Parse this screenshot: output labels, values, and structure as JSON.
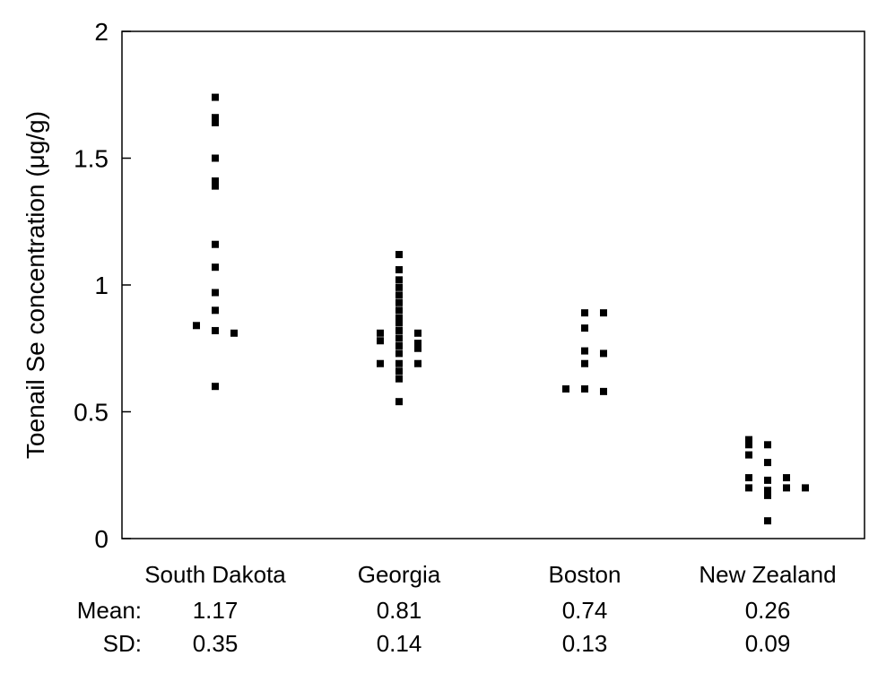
{
  "chart_data": {
    "type": "scatter",
    "ylabel": "Toenail Se concentration (μg/g)",
    "xlabel": "",
    "ylim": [
      0,
      2
    ],
    "yticks": [
      {
        "value": 0,
        "label": "0"
      },
      {
        "value": 0.5,
        "label": "0.5"
      },
      {
        "value": 1,
        "label": "1"
      },
      {
        "value": 1.5,
        "label": "1.5"
      },
      {
        "value": 2,
        "label": "2"
      }
    ],
    "grid": false,
    "legend": "none",
    "marker_color": "#000000",
    "categories": [
      "South Dakota",
      "Georgia",
      "Boston",
      "New Zealand"
    ],
    "groups": [
      {
        "name": "South Dakota",
        "points": [
          {
            "x": 0,
            "y": 1.74
          },
          {
            "x": 0,
            "y": 1.66
          },
          {
            "x": 0,
            "y": 1.64
          },
          {
            "x": 0,
            "y": 1.5
          },
          {
            "x": 0,
            "y": 1.41
          },
          {
            "x": 0,
            "y": 1.39
          },
          {
            "x": 0,
            "y": 1.16
          },
          {
            "x": 0,
            "y": 1.07
          },
          {
            "x": 0,
            "y": 0.97
          },
          {
            "x": 0,
            "y": 0.9
          },
          {
            "x": 0,
            "y": 0.82
          },
          {
            "x": 0,
            "y": 0.6
          },
          {
            "x": -1,
            "y": 0.84
          },
          {
            "x": 1,
            "y": 0.81
          }
        ]
      },
      {
        "name": "Georgia",
        "points": [
          {
            "x": 0,
            "y": 1.12
          },
          {
            "x": 0,
            "y": 1.06
          },
          {
            "x": 0,
            "y": 1.02
          },
          {
            "x": 0,
            "y": 0.99
          },
          {
            "x": 0,
            "y": 0.96
          },
          {
            "x": 0,
            "y": 0.93
          },
          {
            "x": 0,
            "y": 0.9
          },
          {
            "x": 0,
            "y": 0.87
          },
          {
            "x": 0,
            "y": 0.85
          },
          {
            "x": 0,
            "y": 0.82
          },
          {
            "x": 0,
            "y": 0.79
          },
          {
            "x": 0,
            "y": 0.76
          },
          {
            "x": 0,
            "y": 0.73
          },
          {
            "x": 0,
            "y": 0.69
          },
          {
            "x": 0,
            "y": 0.66
          },
          {
            "x": 0,
            "y": 0.63
          },
          {
            "x": 0,
            "y": 0.54
          },
          {
            "x": -1,
            "y": 0.81
          },
          {
            "x": -1,
            "y": 0.78
          },
          {
            "x": -1,
            "y": 0.69
          },
          {
            "x": 1,
            "y": 0.81
          },
          {
            "x": 1,
            "y": 0.77
          },
          {
            "x": 1,
            "y": 0.75
          },
          {
            "x": 1,
            "y": 0.69
          }
        ]
      },
      {
        "name": "Boston",
        "points": [
          {
            "x": 0,
            "y": 0.89
          },
          {
            "x": 0,
            "y": 0.83
          },
          {
            "x": 0,
            "y": 0.74
          },
          {
            "x": 0,
            "y": 0.69
          },
          {
            "x": 0,
            "y": 0.59
          },
          {
            "x": 1,
            "y": 0.89
          },
          {
            "x": 1,
            "y": 0.73
          },
          {
            "x": 1,
            "y": 0.58
          },
          {
            "x": -1,
            "y": 0.59
          }
        ]
      },
      {
        "name": "New Zealand",
        "points": [
          {
            "x": -1,
            "y": 0.39
          },
          {
            "x": -1,
            "y": 0.37
          },
          {
            "x": -1,
            "y": 0.33
          },
          {
            "x": -1,
            "y": 0.24
          },
          {
            "x": -1,
            "y": 0.2
          },
          {
            "x": 0,
            "y": 0.37
          },
          {
            "x": 0,
            "y": 0.3
          },
          {
            "x": 0,
            "y": 0.23
          },
          {
            "x": 0,
            "y": 0.19
          },
          {
            "x": 0,
            "y": 0.17
          },
          {
            "x": 0,
            "y": 0.07
          },
          {
            "x": 1,
            "y": 0.24
          },
          {
            "x": 1,
            "y": 0.2
          },
          {
            "x": 2,
            "y": 0.2
          }
        ]
      }
    ],
    "summary": {
      "mean_label": "Mean:",
      "sd_label": "SD:",
      "mean": [
        "1.17",
        "0.81",
        "0.74",
        "0.26"
      ],
      "sd": [
        "0.35",
        "0.14",
        "0.13",
        "0.09"
      ]
    }
  }
}
